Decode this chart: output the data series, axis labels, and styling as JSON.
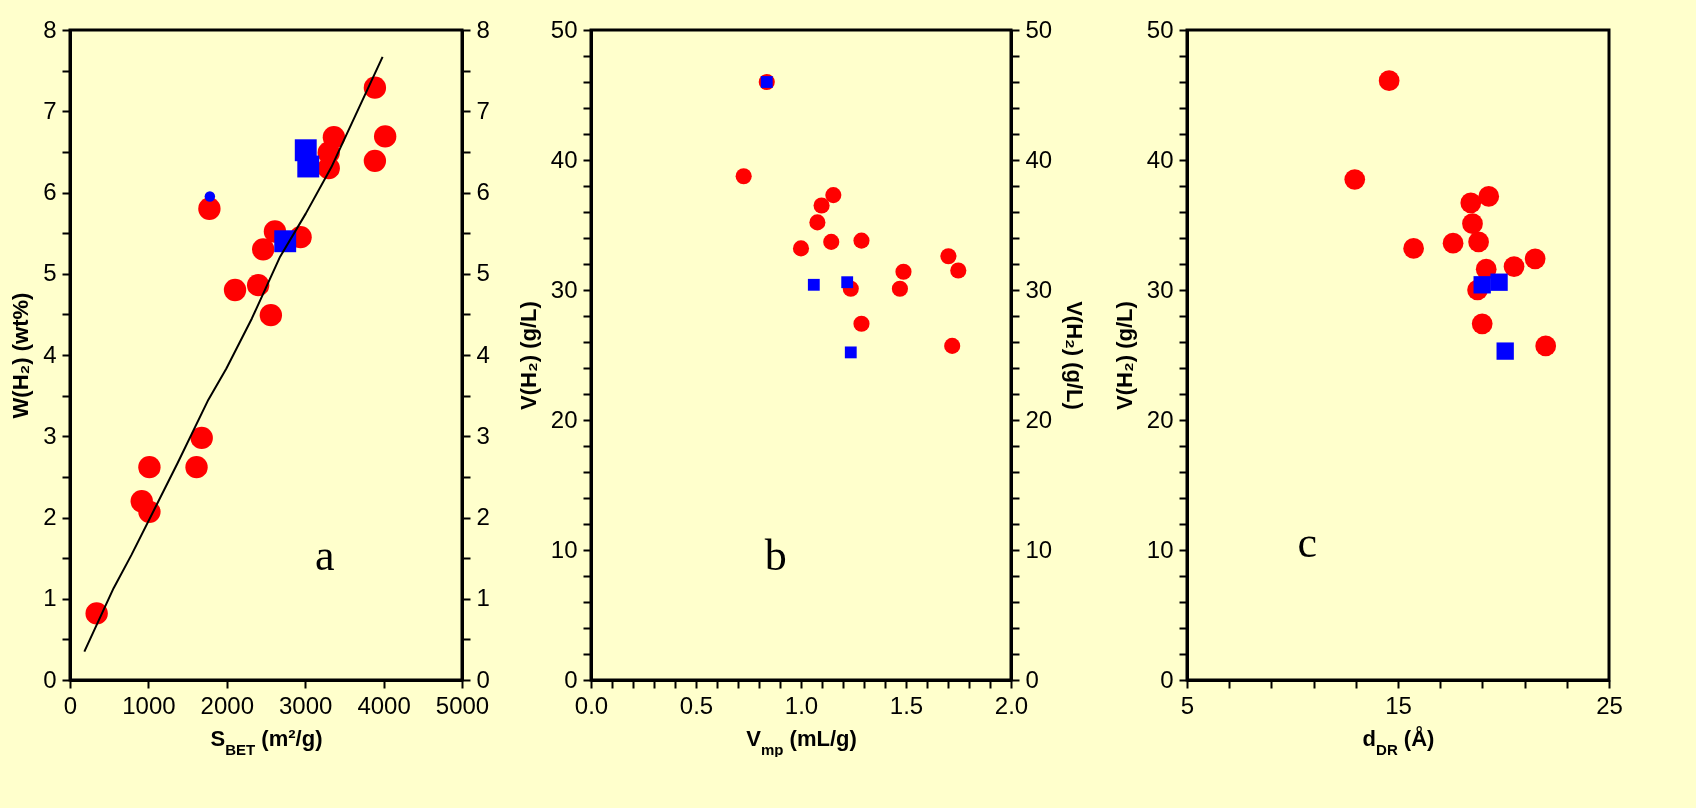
{
  "chart_data": [
    {
      "type": "scatter",
      "xlabel": "S$_{BET}$ (m²/g)",
      "ylabel": "W(H₂) (wt%)",
      "xlim": [
        0,
        5000
      ],
      "xticks": [
        0,
        1000,
        2000,
        3000,
        4000,
        5000
      ],
      "ylim": [
        0,
        8
      ],
      "yticks": [
        0,
        {
          "value": 0.5,
          "label": null
        },
        1,
        {
          "value": 1.5,
          "label": null
        },
        2,
        {
          "value": 2.5,
          "label": null
        },
        3,
        {
          "value": 3.5,
          "label": null
        },
        4,
        {
          "value": 4.5,
          "label": null
        },
        5,
        {
          "value": 5.5,
          "label": null
        },
        6,
        {
          "value": 6.5,
          "label": null
        },
        7,
        {
          "value": 7.5,
          "label": null
        },
        8
      ],
      "y2lim": [
        0,
        8
      ],
      "y2ticks": [
        0,
        {
          "value": 0.5,
          "label": null
        },
        1,
        {
          "value": 1.5,
          "label": null
        },
        2,
        {
          "value": 2.5,
          "label": null
        },
        3,
        {
          "value": 3.5,
          "label": null
        },
        4,
        {
          "value": 4.5,
          "label": null
        },
        5,
        {
          "value": 5.5,
          "label": null
        },
        6,
        {
          "value": 6.5,
          "label": null
        },
        7,
        {
          "value": 7.5,
          "label": null
        },
        8
      ],
      "annotations": [
        "a"
      ],
      "series": [
        {
          "type": "line",
          "color": "#000000",
          "marker": "none",
          "x": [
            183,
            556,
            784,
            1373,
            1765,
            1993,
            2320,
            2680,
            3007,
            3333,
            3987
          ],
          "values": [
            0.35,
            1.13,
            1.54,
            2.67,
            3.45,
            3.83,
            4.45,
            5.21,
            5.74,
            6.31,
            7.67
          ]
        },
        {
          "color": "#ff0000",
          "marker": "circle",
          "x": [
            340,
            915,
            1013,
            1013,
            1614,
            1680,
            1778,
            2105,
            2400,
            2464,
            2562,
            2614,
            2941,
            3300,
            3300,
            3366,
            3889,
            3889,
            4020
          ],
          "values": [
            0.82,
            2.2,
            2.07,
            2.62,
            2.62,
            2.98,
            5.8,
            4.8,
            4.86,
            5.3,
            4.49,
            5.52,
            5.45,
            6.3,
            6.49,
            6.68,
            7.29,
            6.39,
            6.69
          ]
        },
        {
          "color": "#0000ff",
          "marker": "square",
          "x": [
            3007,
            3039,
            2745
          ],
          "values": [
            6.52,
            6.32,
            5.4
          ]
        },
        {
          "color": "#0000ff",
          "marker": "circle",
          "x": [
            1784
          ],
          "values": [
            5.95
          ]
        }
      ]
    },
    {
      "type": "scatter",
      "xlabel": "V$_{mp}$ (mL/g)",
      "ylabel": "V(H₂) (g/L)",
      "y2label": "V(H₂) (g/L)",
      "xlim": [
        0,
        2
      ],
      "xticks": [
        {
          "value": 0,
          "label": "0.0"
        },
        {
          "value": 0.1,
          "label": null
        },
        {
          "value": 0.2,
          "label": null
        },
        {
          "value": 0.3,
          "label": null
        },
        {
          "value": 0.4,
          "label": null
        },
        0.5,
        {
          "value": 0.6,
          "label": null
        },
        {
          "value": 0.7,
          "label": null
        },
        {
          "value": 0.8,
          "label": null
        },
        {
          "value": 0.9,
          "label": null
        },
        {
          "value": 1,
          "label": "1.0"
        },
        {
          "value": 1.1,
          "label": null
        },
        {
          "value": 1.2,
          "label": null
        },
        {
          "value": 1.3,
          "label": null
        },
        {
          "value": 1.4,
          "label": null
        },
        1.5,
        {
          "value": 1.6,
          "label": null
        },
        {
          "value": 1.7,
          "label": null
        },
        {
          "value": 1.8,
          "label": null
        },
        {
          "value": 1.9,
          "label": null
        },
        {
          "value": 2,
          "label": "2.0"
        }
      ],
      "ylim": [
        0,
        50
      ],
      "yticks": [
        0,
        {
          "value": 2,
          "label": null
        },
        {
          "value": 4,
          "label": null
        },
        {
          "value": 6,
          "label": null
        },
        {
          "value": 8,
          "label": null
        },
        10,
        {
          "value": 12,
          "label": null
        },
        {
          "value": 14,
          "label": null
        },
        {
          "value": 16,
          "label": null
        },
        {
          "value": 18,
          "label": null
        },
        20,
        {
          "value": 22,
          "label": null
        },
        {
          "value": 24,
          "label": null
        },
        {
          "value": 26,
          "label": null
        },
        {
          "value": 28,
          "label": null
        },
        30,
        {
          "value": 32,
          "label": null
        },
        {
          "value": 34,
          "label": null
        },
        {
          "value": 36,
          "label": null
        },
        {
          "value": 38,
          "label": null
        },
        40,
        {
          "value": 42,
          "label": null
        },
        {
          "value": 44,
          "label": null
        },
        {
          "value": 46,
          "label": null
        },
        {
          "value": 48,
          "label": null
        },
        50
      ],
      "y2lim": [
        0,
        50
      ],
      "y2ticks": [
        0,
        {
          "value": 2,
          "label": null
        },
        {
          "value": 4,
          "label": null
        },
        {
          "value": 6,
          "label": null
        },
        {
          "value": 8,
          "label": null
        },
        10,
        {
          "value": 12,
          "label": null
        },
        {
          "value": 14,
          "label": null
        },
        {
          "value": 16,
          "label": null
        },
        {
          "value": 18,
          "label": null
        },
        20,
        {
          "value": 22,
          "label": null
        },
        {
          "value": 24,
          "label": null
        },
        {
          "value": 26,
          "label": null
        },
        {
          "value": 28,
          "label": null
        },
        30,
        {
          "value": 32,
          "label": null
        },
        {
          "value": 34,
          "label": null
        },
        {
          "value": 36,
          "label": null
        },
        {
          "value": 38,
          "label": null
        },
        40,
        {
          "value": 42,
          "label": null
        },
        {
          "value": 44,
          "label": null
        },
        {
          "value": 46,
          "label": null
        },
        {
          "value": 48,
          "label": null
        },
        50
      ],
      "annotations": [
        "b"
      ],
      "series": [
        {
          "color": "#ff0000",
          "marker": "circle",
          "x": [
            0.727,
            0.837,
            1.0,
            1.078,
            1.098,
            1.154,
            1.144,
            1.288,
            1.237,
            1.288,
            1.471,
            1.488,
            1.702,
            1.749,
            1.72
          ],
          "values": [
            38.75,
            46.0,
            33.2,
            35.2,
            36.5,
            37.3,
            33.7,
            33.8,
            30.1,
            27.4,
            30.1,
            31.4,
            32.6,
            31.5,
            25.7
          ]
        },
        {
          "color": "#0000ff",
          "marker": "square",
          "x": [
            0.837,
            1.061,
            1.22,
            1.237
          ],
          "values": [
            46.0,
            30.4,
            30.6,
            25.2
          ]
        }
      ]
    },
    {
      "type": "scatter",
      "xlabel": "d$_{DR}$ (Å)",
      "ylabel": "V(H₂) (g/L)",
      "xlim": [
        5,
        25
      ],
      "xticks": [
        5,
        {
          "value": 7,
          "label": null
        },
        {
          "value": 9,
          "label": null
        },
        {
          "value": 11,
          "label": null
        },
        {
          "value": 13,
          "label": null
        },
        15,
        {
          "value": 17,
          "label": null
        },
        {
          "value": 19,
          "label": null
        },
        {
          "value": 21,
          "label": null
        },
        {
          "value": 23,
          "label": null
        },
        25
      ],
      "ylim": [
        0,
        50
      ],
      "yticks": [
        0,
        {
          "value": 2,
          "label": null
        },
        {
          "value": 4,
          "label": null
        },
        {
          "value": 6,
          "label": null
        },
        {
          "value": 8,
          "label": null
        },
        10,
        {
          "value": 12,
          "label": null
        },
        {
          "value": 14,
          "label": null
        },
        {
          "value": 16,
          "label": null
        },
        {
          "value": 18,
          "label": null
        },
        20,
        {
          "value": 22,
          "label": null
        },
        {
          "value": 24,
          "label": null
        },
        {
          "value": 26,
          "label": null
        },
        {
          "value": 28,
          "label": null
        },
        30,
        {
          "value": 32,
          "label": null
        },
        {
          "value": 34,
          "label": null
        },
        {
          "value": 36,
          "label": null
        },
        {
          "value": 38,
          "label": null
        },
        40,
        {
          "value": 42,
          "label": null
        },
        {
          "value": 44,
          "label": null
        },
        {
          "value": 46,
          "label": null
        },
        {
          "value": 48,
          "label": null
        },
        50
      ],
      "annotations": [
        "c"
      ],
      "series": [
        {
          "color": "#ff0000",
          "marker": "circle",
          "x": [
            14.58,
            12.95,
            15.74,
            17.61,
            18.45,
            19.3,
            18.53,
            18.82,
            19.18,
            18.77,
            18.99,
            20.5,
            21.5,
            22.0
          ],
          "values": [
            46.1,
            38.5,
            33.2,
            33.6,
            36.7,
            37.2,
            35.1,
            33.7,
            31.6,
            30.0,
            27.4,
            31.8,
            32.4,
            25.7
          ]
        },
        {
          "color": "#0000ff",
          "marker": "square",
          "x": [
            18.99,
            19.79,
            20.08
          ],
          "values": [
            30.4,
            30.6,
            25.3
          ]
        }
      ]
    }
  ]
}
